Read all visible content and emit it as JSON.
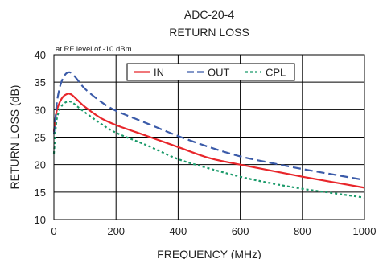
{
  "chart_data": {
    "type": "line",
    "title": "ADC-20-4",
    "subtitle": "RETURN LOSS",
    "note": "at RF level of -10 dBm",
    "xlabel": "FREQUENCY (MHz)",
    "ylabel": "RETURN LOSS (dB)",
    "xlim": [
      0,
      1000
    ],
    "ylim": [
      10,
      40
    ],
    "xticks": [
      "0",
      "200",
      "400",
      "600",
      "800",
      "1000"
    ],
    "yticks": [
      "10",
      "15",
      "20",
      "25",
      "30",
      "35",
      "40"
    ],
    "grid": true,
    "legend_position": "top-right",
    "series": [
      {
        "name": "IN",
        "color": "#e8262b",
        "style": "solid",
        "x": [
          0,
          5,
          10,
          20,
          30,
          40,
          50,
          60,
          75,
          100,
          150,
          200,
          300,
          400,
          500,
          600,
          700,
          800,
          900,
          1000
        ],
        "y": [
          26,
          28.5,
          30,
          31.5,
          32.4,
          32.8,
          32.9,
          32.6,
          31.8,
          30.5,
          28.5,
          27.2,
          25.2,
          23.2,
          21.2,
          20.0,
          18.9,
          17.8,
          16.8,
          15.8
        ]
      },
      {
        "name": "OUT",
        "color": "#3b5ba9",
        "style": "dashed",
        "x": [
          0,
          5,
          10,
          20,
          30,
          40,
          50,
          60,
          75,
          100,
          150,
          200,
          300,
          400,
          500,
          600,
          700,
          800,
          900,
          1000
        ],
        "y": [
          25.5,
          28.5,
          31.5,
          34.3,
          35.8,
          36.6,
          36.8,
          36.5,
          35.5,
          33.8,
          31.5,
          29.8,
          27.5,
          25.2,
          23.2,
          21.5,
          20.3,
          19.2,
          18.2,
          17.2
        ]
      },
      {
        "name": "CPL",
        "color": "#1a9a6a",
        "style": "dotted",
        "x": [
          0,
          5,
          10,
          20,
          30,
          40,
          50,
          60,
          75,
          100,
          150,
          200,
          300,
          400,
          500,
          600,
          700,
          800,
          900,
          1000
        ],
        "y": [
          22,
          26,
          28.5,
          30.2,
          31.0,
          31.4,
          31.5,
          31.3,
          30.6,
          29.5,
          27.5,
          25.8,
          23.5,
          21.0,
          19.3,
          17.8,
          16.6,
          15.6,
          14.8,
          14.0
        ]
      }
    ]
  }
}
